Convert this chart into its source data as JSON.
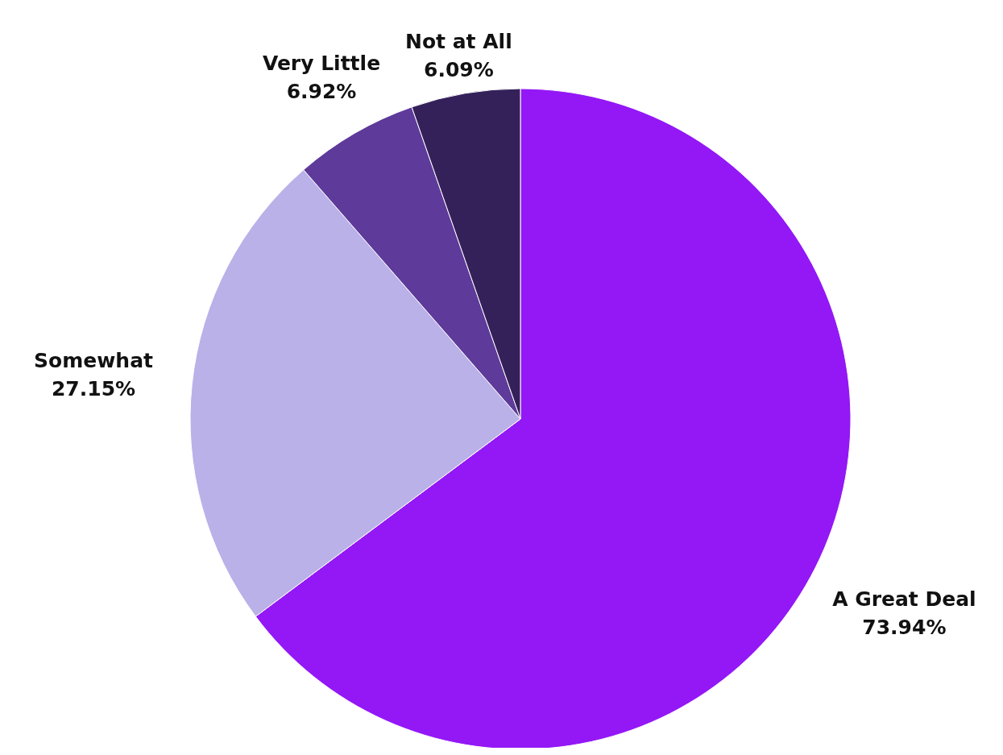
{
  "chart_data": {
    "type": "pie",
    "categories": [
      "A Great Deal",
      "Somewhat",
      "Very Little",
      "Not at All"
    ],
    "values": [
      73.94,
      27.15,
      6.92,
      6.09
    ],
    "colors": [
      "#9318f5",
      "#b9b1e8",
      "#5e3a9a",
      "#35215a"
    ],
    "value_labels": [
      "73.94%",
      "27.15%",
      "6.92%",
      "6.09%"
    ]
  }
}
